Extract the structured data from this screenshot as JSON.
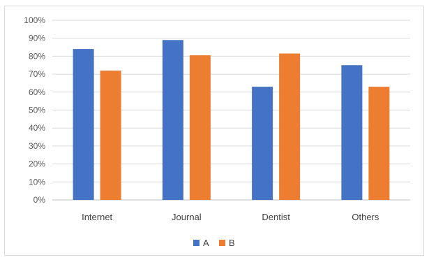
{
  "chart_data": {
    "type": "bar",
    "categories": [
      "Internet",
      "Journal",
      "Dentist",
      "Others"
    ],
    "series": [
      {
        "name": "A",
        "values": [
          84,
          89,
          63,
          75
        ],
        "color": "#4472c4"
      },
      {
        "name": "B",
        "values": [
          72,
          80.5,
          81.5,
          63
        ],
        "color": "#ed7d31"
      }
    ],
    "y_ticks": [
      "0%",
      "10%",
      "20%",
      "30%",
      "40%",
      "50%",
      "60%",
      "70%",
      "80%",
      "90%",
      "100%"
    ],
    "ylim": [
      0,
      100
    ],
    "grid": true,
    "legend_position": "bottom",
    "title": "",
    "xlabel": "",
    "ylabel": ""
  }
}
